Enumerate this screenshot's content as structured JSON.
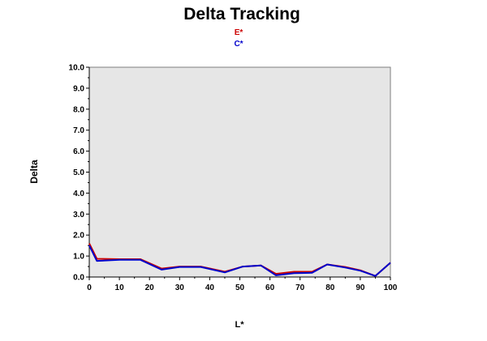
{
  "chart_data": {
    "type": "line",
    "title": "Delta Tracking",
    "xlabel": "L*",
    "ylabel": "Delta",
    "xlim": [
      0,
      100
    ],
    "ylim": [
      0,
      10
    ],
    "xticks": [
      "0",
      "10",
      "20",
      "30",
      "40",
      "50",
      "60",
      "70",
      "80",
      "90",
      "100"
    ],
    "yticks": [
      "0.0",
      "1.0",
      "2.0",
      "3.0",
      "4.0",
      "5.0",
      "6.0",
      "7.0",
      "8.0",
      "9.0",
      "10.0"
    ],
    "grid": false,
    "legend_position": "top-center",
    "plot_background": "#e6e6e6",
    "series": [
      {
        "name": "E*",
        "color": "#cc0000",
        "x": [
          0,
          2.5,
          10,
          17,
          24,
          30,
          37,
          45,
          51,
          57,
          62,
          68,
          74,
          79,
          85,
          90,
          95,
          100
        ],
        "y": [
          1.6,
          0.87,
          0.85,
          0.85,
          0.4,
          0.5,
          0.5,
          0.25,
          0.5,
          0.55,
          0.15,
          0.25,
          0.25,
          0.6,
          0.48,
          0.32,
          0.05,
          0.68
        ]
      },
      {
        "name": "C*",
        "color": "#0000cc",
        "x": [
          0,
          2.5,
          10,
          17,
          24,
          30,
          37,
          45,
          51,
          57,
          62,
          68,
          74,
          79,
          85,
          90,
          95,
          100
        ],
        "y": [
          1.5,
          0.77,
          0.82,
          0.82,
          0.35,
          0.48,
          0.48,
          0.22,
          0.5,
          0.55,
          0.08,
          0.18,
          0.2,
          0.6,
          0.45,
          0.3,
          0.05,
          0.68
        ]
      }
    ]
  }
}
